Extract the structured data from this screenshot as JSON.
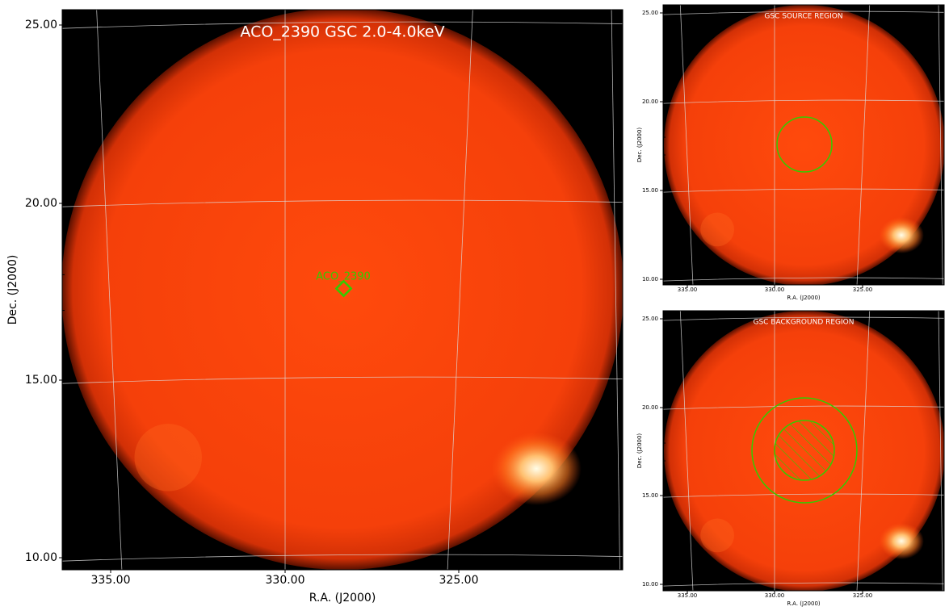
{
  "main": {
    "title": "ACO_2390 GSC 2.0-4.0keV",
    "xlabel": "R.A. (J2000)",
    "ylabel": "Dec. (J2000)",
    "yticks": [
      "25.00",
      "20.00",
      "15.00",
      "10.00"
    ],
    "xticks": [
      "335.00",
      "330.00",
      "325.00"
    ],
    "annotation": "ACO_2390"
  },
  "source_panel": {
    "title": "GSC SOURCE REGION",
    "xlabel": "R.A. (J2000)",
    "ylabel": "Dec. (J2000)",
    "yticks": [
      "25.00",
      "20.00",
      "15.00",
      "10.00"
    ],
    "xticks": [
      "335.00",
      "330.00",
      "325.00"
    ]
  },
  "background_panel": {
    "title": "GSC BACKGROUND REGION",
    "xlabel": "R.A. (J2000)",
    "ylabel": "Dec. (J2000)",
    "yticks": [
      "25.00",
      "20.00",
      "15.00",
      "10.00"
    ],
    "xticks": [
      "335.00",
      "330.00",
      "325.00"
    ]
  }
}
